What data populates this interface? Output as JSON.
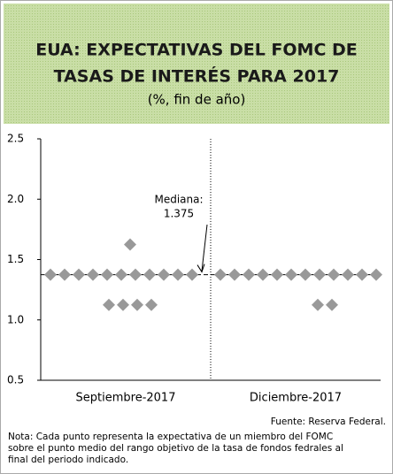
{
  "chart_data": {
    "type": "dot",
    "title_lines": [
      "EUA: EXPECTATIVAS DEL FOMC DE",
      "TASAS DE INTERÉS PARA 2017"
    ],
    "subtitle": "(%, fin de año)",
    "categories": [
      "Septiembre-2017",
      "Diciembre-2017"
    ],
    "points": [
      [
        1.375,
        1.375,
        1.375,
        1.375,
        1.375,
        1.375,
        1.375,
        1.375,
        1.375,
        1.375,
        1.375,
        1.625,
        1.125,
        1.125,
        1.125,
        1.125
      ],
      [
        1.375,
        1.375,
        1.375,
        1.375,
        1.375,
        1.375,
        1.375,
        1.375,
        1.375,
        1.375,
        1.375,
        1.375,
        1.125,
        1.125
      ]
    ],
    "color": "#999999",
    "median": 1.375,
    "median_label": "Mediana:",
    "ylim": [
      0.5,
      2.5
    ],
    "yticks": [
      0.5,
      {
        "value": 1,
        "label": "1.0"
      },
      1.5,
      {
        "value": 2,
        "label": "2.0"
      },
      2.5
    ],
    "source": "Fuente: Reserva Federal.",
    "note_lines": [
      "Nota: Cada punto representa la expectativa de un miembro del FOMC",
      "sobre el punto medio del rango objetivo de la tasa de fondos fedrales al",
      "final del periodo indicado."
    ]
  }
}
